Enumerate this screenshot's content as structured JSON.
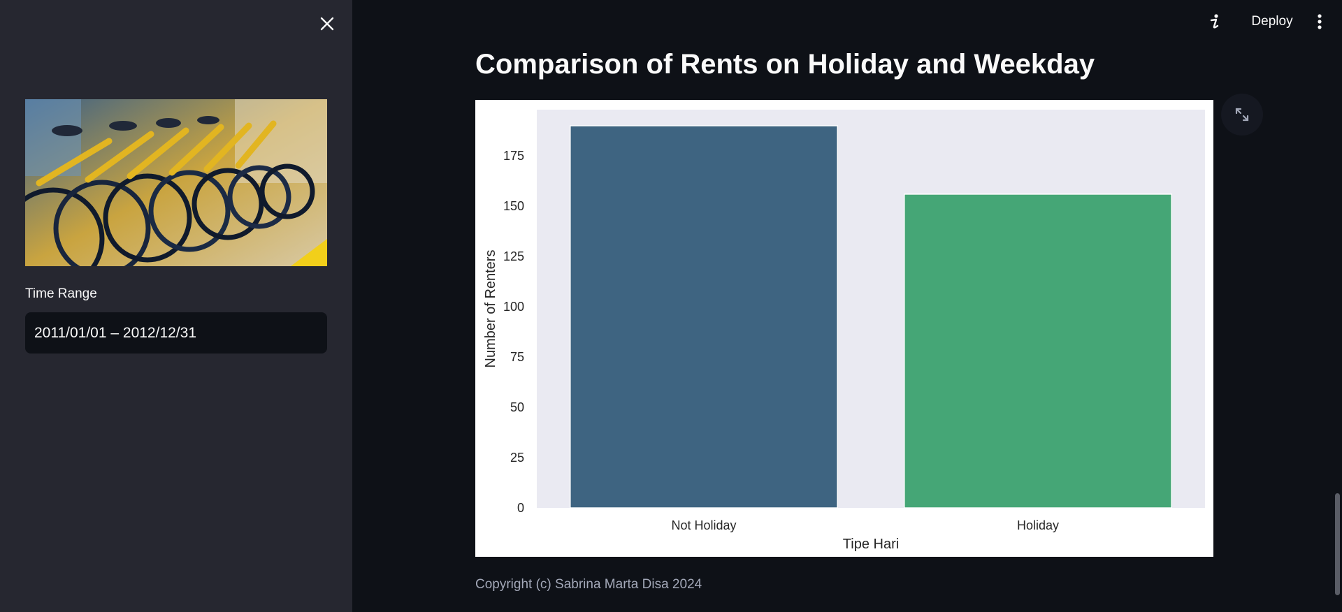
{
  "sidebar": {
    "close_icon": "close-icon",
    "image_alt": "bicycles-photo",
    "time_range_label": "Time Range",
    "time_range_value": "2011/01/01 – 2012/12/31"
  },
  "header": {
    "info_icon": "info-icon",
    "deploy_label": "Deploy",
    "menu_icon": "kebab-menu-icon"
  },
  "main": {
    "title": "Comparison of Rents on Holiday and Weekday",
    "copyright": "Copyright (c) Sabrina Marta Disa 2024"
  },
  "colors": {
    "app_bg": "#0e1117",
    "sidebar_bg": "#262730",
    "plot_bg": "#eaeaf2",
    "bar_not_holiday": "#3e6481",
    "bar_holiday": "#45a676"
  },
  "chart_data": {
    "type": "bar",
    "categories": [
      "Not Holiday",
      "Holiday"
    ],
    "values": [
      190,
      156
    ],
    "xlabel": "Tipe Hari",
    "ylabel": "Number of Renters",
    "ylim": [
      0,
      198
    ],
    "yticks": [
      0,
      25,
      50,
      75,
      100,
      125,
      150,
      175
    ],
    "grid": false
  }
}
